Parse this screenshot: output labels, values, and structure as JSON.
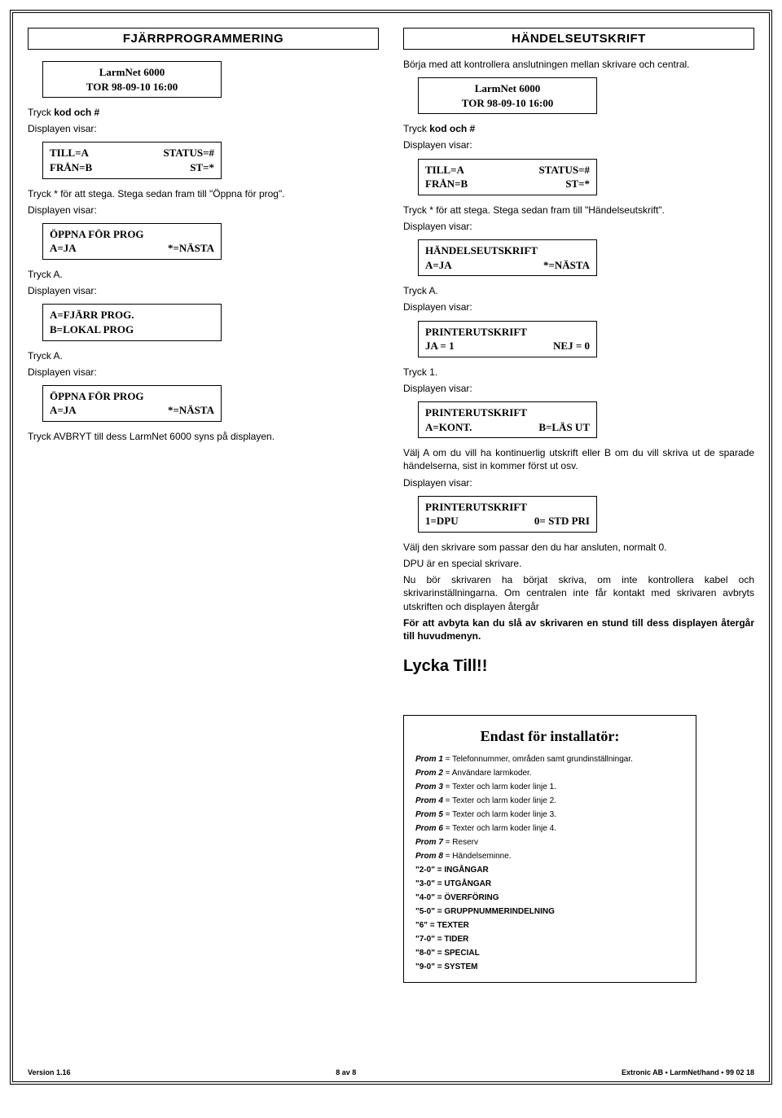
{
  "left": {
    "title": "FJÄRRPROGRAMMERING",
    "lcd1_l1": "LarmNet 6000",
    "lcd1_l2": "TOR 98-09-10 16:00",
    "p1a": "Tryck ",
    "p1b": "kod och #",
    "p2": "Displayen visar:",
    "lcd2_l1a": "TILL=A",
    "lcd2_l1b": "STATUS=#",
    "lcd2_l2a": "FRÅN=B",
    "lcd2_l2b": "ST=*",
    "p3": "Tryck * för att stega. Stega sedan fram till \"Öppna för prog\".",
    "p4": "Displayen visar:",
    "lcd3_l1": "ÖPPNA FÖR PROG",
    "lcd3_l2a": "A=JA",
    "lcd3_l2b": "*=NÄSTA",
    "p5": "Tryck A.",
    "p6": "Displayen visar:",
    "lcd4_l1": "A=FJÄRR PROG.",
    "lcd4_l2": "B=LOKAL PROG",
    "p7": "Tryck A.",
    "p8": "Displayen visar:",
    "lcd5_l1": "ÖPPNA FÖR PROG",
    "lcd5_l2a": "A=JA",
    "lcd5_l2b": "*=NÄSTA",
    "p9": "Tryck AVBRYT till dess LarmNet 6000 syns på displayen."
  },
  "right": {
    "title": "HÄNDELSEUTSKRIFT",
    "p1": "Börja med att kontrollera anslutningen mellan skrivare och central.",
    "lcd1_l1": "LarmNet 6000",
    "lcd1_l2": "TOR 98-09-10 16:00",
    "p2a": "Tryck ",
    "p2b": "kod och #",
    "p3": "Displayen visar:",
    "lcd2_l1a": "TILL=A",
    "lcd2_l1b": "STATUS=#",
    "lcd2_l2a": "FRÅN=B",
    "lcd2_l2b": "ST=*",
    "p4": "Tryck * för att stega. Stega sedan fram till \"Händelseutskrift\".",
    "p5": "Displayen visar:",
    "lcd3_l1": "HÄNDELSEUTSKRIFT",
    "lcd3_l2a": "A=JA",
    "lcd3_l2b": "*=NÄSTA",
    "p6": "Tryck A.",
    "p7": "Displayen visar:",
    "lcd4_l1": "PRINTERUTSKRIFT",
    "lcd4_l2a": "JA = 1",
    "lcd4_l2b": "NEJ = 0",
    "p8": "Tryck 1.",
    "p9": "Displayen visar:",
    "lcd5_l1": "PRINTERUTSKRIFT",
    "lcd5_l2a": "A=KONT.",
    "lcd5_l2b": "B=LÄS UT",
    "p10": "Välj A om du vill ha kontinuerlig utskrift eller B om du vill skriva ut de sparade händelserna, sist in kommer först ut osv.",
    "p11": "Displayen visar:",
    "lcd6_l1": "PRINTERUTSKRIFT",
    "lcd6_l2a": "1=DPU",
    "lcd6_l2b": "0= STD PRI",
    "p12": "Välj den skrivare som passar den du har ansluten, normalt 0.",
    "p13": "DPU är en special skrivare.",
    "p14": "Nu bör skrivaren ha börjat skriva, om inte kontrollera kabel och skrivarinställningarna. Om centralen inte får kontakt med skrivaren avbryts utskriften och displayen återgår",
    "p15": "För att avbyta kan du slå av skrivaren en stund till dess displayen återgår till huvudmenyn.",
    "h2": "Lycka Till!!"
  },
  "installer": {
    "title": "Endast för installatör:",
    "rows": [
      {
        "k": "Prom 1",
        "v": " = Telefonnummer, områden samt grundinställningar."
      },
      {
        "k": "Prom 2",
        "v": " = Användare larmkoder."
      },
      {
        "k": "Prom 3",
        "v": " = Texter och larm koder linje 1."
      },
      {
        "k": "Prom 4",
        "v": " = Texter och larm koder linje 2."
      },
      {
        "k": "Prom 5",
        "v": " = Texter och larm koder linje 3."
      },
      {
        "k": "Prom 6",
        "v": " = Texter och larm koder linje 4."
      },
      {
        "k": "Prom 7",
        "v": " = Reserv"
      },
      {
        "k": "Prom 8",
        "v": " = Händelseminne."
      }
    ],
    "codes": [
      {
        "q": "\"2-0\" = INGÅNGAR"
      },
      {
        "q": "\"3-0\" = UTGÅNGAR"
      },
      {
        "q": "\"4-0\" =  ÖVERFÖRING"
      },
      {
        "q": "\"5-0\" = GRUPPNUMMERINDELNING"
      },
      {
        "q": "\"6\" = TEXTER"
      },
      {
        "q": "\"7-0\" = TIDER"
      },
      {
        "q": "\"8-0\" = SPECIAL"
      },
      {
        "q": "\"9-0\" = SYSTEM"
      }
    ]
  },
  "footer": {
    "left": "Version 1.16",
    "center": "8 av 8",
    "right": "Extronic AB • LarmNet/hand • 99 02 18"
  }
}
